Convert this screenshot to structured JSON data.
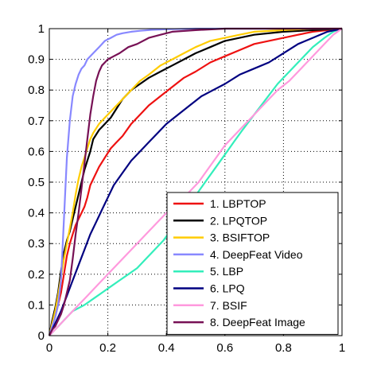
{
  "chart_data": {
    "type": "line",
    "title": "",
    "xlabel": "",
    "ylabel": "",
    "xlim": [
      0,
      1
    ],
    "ylim": [
      0,
      1
    ],
    "grid": true,
    "legend_placement": "bottom-right",
    "x_ticks": [
      {
        "value": 0,
        "label": "0"
      },
      {
        "value": 0.2,
        "label": "0.2"
      },
      {
        "value": 0.4,
        "label": "0.4"
      },
      {
        "value": 0.6,
        "label": "0.6"
      },
      {
        "value": 0.8,
        "label": "0.8"
      },
      {
        "value": 1,
        "label": "1"
      }
    ],
    "y_ticks": [
      {
        "value": 0,
        "label": "0"
      },
      {
        "value": 0.1,
        "label": "0.1"
      },
      {
        "value": 0.2,
        "label": "0.2"
      },
      {
        "value": 0.3,
        "label": "0.3"
      },
      {
        "value": 0.4,
        "label": "0.4"
      },
      {
        "value": 0.5,
        "label": "0.5"
      },
      {
        "value": 0.6,
        "label": "0.6"
      },
      {
        "value": 0.7,
        "label": "0.7"
      },
      {
        "value": 0.8,
        "label": "0.8"
      },
      {
        "value": 0.9,
        "label": "0.9"
      },
      {
        "value": 1,
        "label": "1"
      }
    ],
    "series": [
      {
        "name": "1. LBPTOP",
        "color": "#ee1111",
        "x": [
          0,
          0.01,
          0.02,
          0.03,
          0.04,
          0.05,
          0.06,
          0.07,
          0.08,
          0.09,
          0.1,
          0.11,
          0.12,
          0.13,
          0.14,
          0.15,
          0.17,
          0.19,
          0.21,
          0.23,
          0.25,
          0.28,
          0.31,
          0.34,
          0.38,
          0.42,
          0.46,
          0.5,
          0.55,
          0.6,
          0.65,
          0.7,
          0.75,
          0.8,
          0.85,
          0.9,
          0.95,
          1
        ],
        "y": [
          0,
          0.03,
          0.06,
          0.1,
          0.14,
          0.2,
          0.26,
          0.3,
          0.33,
          0.36,
          0.38,
          0.4,
          0.42,
          0.45,
          0.49,
          0.51,
          0.55,
          0.58,
          0.61,
          0.63,
          0.65,
          0.69,
          0.72,
          0.75,
          0.78,
          0.81,
          0.84,
          0.86,
          0.89,
          0.91,
          0.93,
          0.95,
          0.96,
          0.97,
          0.98,
          0.99,
          0.995,
          1
        ]
      },
      {
        "name": "2. LPQTOP",
        "color": "#000000",
        "x": [
          0,
          0.01,
          0.02,
          0.03,
          0.04,
          0.05,
          0.06,
          0.07,
          0.08,
          0.09,
          0.1,
          0.11,
          0.12,
          0.13,
          0.14,
          0.15,
          0.17,
          0.19,
          0.21,
          0.23,
          0.25,
          0.28,
          0.31,
          0.34,
          0.38,
          0.42,
          0.46,
          0.5,
          0.55,
          0.6,
          0.65,
          0.7,
          0.8,
          0.9,
          1
        ],
        "y": [
          0,
          0.05,
          0.09,
          0.14,
          0.21,
          0.27,
          0.31,
          0.34,
          0.38,
          0.42,
          0.46,
          0.5,
          0.54,
          0.57,
          0.6,
          0.64,
          0.67,
          0.69,
          0.71,
          0.74,
          0.77,
          0.8,
          0.82,
          0.84,
          0.86,
          0.88,
          0.9,
          0.92,
          0.94,
          0.96,
          0.97,
          0.98,
          0.99,
          0.995,
          1
        ]
      },
      {
        "name": "3. BSIFTOP",
        "color": "#ffcc00",
        "x": [
          0,
          0.01,
          0.02,
          0.03,
          0.04,
          0.05,
          0.06,
          0.07,
          0.08,
          0.09,
          0.1,
          0.11,
          0.12,
          0.13,
          0.14,
          0.15,
          0.17,
          0.19,
          0.21,
          0.23,
          0.25,
          0.28,
          0.31,
          0.34,
          0.38,
          0.42,
          0.46,
          0.5,
          0.55,
          0.6,
          0.65,
          0.7,
          0.8,
          0.9,
          1
        ],
        "y": [
          0,
          0.04,
          0.08,
          0.13,
          0.19,
          0.25,
          0.3,
          0.35,
          0.4,
          0.46,
          0.51,
          0.55,
          0.58,
          0.61,
          0.64,
          0.66,
          0.69,
          0.71,
          0.73,
          0.75,
          0.77,
          0.8,
          0.83,
          0.85,
          0.88,
          0.9,
          0.92,
          0.94,
          0.96,
          0.97,
          0.98,
          0.99,
          0.995,
          1,
          1
        ]
      },
      {
        "name": "4. DeepFeat Video",
        "color": "#8888ff",
        "x": [
          0,
          0.01,
          0.02,
          0.03,
          0.04,
          0.05,
          0.06,
          0.07,
          0.08,
          0.09,
          0.1,
          0.11,
          0.12,
          0.13,
          0.14,
          0.15,
          0.17,
          0.19,
          0.21,
          0.23,
          0.25,
          0.28,
          0.31,
          0.35,
          0.4,
          0.5,
          0.6,
          0.8,
          1
        ],
        "y": [
          0,
          0.03,
          0.06,
          0.1,
          0.18,
          0.38,
          0.58,
          0.7,
          0.78,
          0.82,
          0.85,
          0.87,
          0.88,
          0.9,
          0.91,
          0.92,
          0.94,
          0.96,
          0.97,
          0.98,
          0.985,
          0.99,
          0.993,
          0.996,
          0.998,
          1,
          1,
          1,
          1
        ]
      },
      {
        "name": "5. LBP",
        "color": "#33eebb",
        "x": [
          0,
          0.02,
          0.04,
          0.06,
          0.08,
          0.1,
          0.12,
          0.15,
          0.18,
          0.21,
          0.24,
          0.27,
          0.3,
          0.33,
          0.36,
          0.39,
          0.42,
          0.45,
          0.48,
          0.51,
          0.54,
          0.57,
          0.6,
          0.63,
          0.66,
          0.7,
          0.74,
          0.78,
          0.82,
          0.86,
          0.9,
          0.94,
          0.97,
          1
        ],
        "y": [
          0,
          0.02,
          0.04,
          0.06,
          0.08,
          0.09,
          0.1,
          0.12,
          0.14,
          0.16,
          0.18,
          0.2,
          0.22,
          0.25,
          0.28,
          0.31,
          0.35,
          0.39,
          0.43,
          0.47,
          0.51,
          0.55,
          0.59,
          0.63,
          0.67,
          0.72,
          0.77,
          0.82,
          0.86,
          0.9,
          0.94,
          0.97,
          0.99,
          1
        ]
      },
      {
        "name": "6. LPQ",
        "color": "#000080",
        "x": [
          0,
          0.02,
          0.04,
          0.06,
          0.08,
          0.1,
          0.12,
          0.14,
          0.16,
          0.18,
          0.2,
          0.22,
          0.25,
          0.28,
          0.31,
          0.34,
          0.37,
          0.4,
          0.44,
          0.48,
          0.52,
          0.56,
          0.6,
          0.65,
          0.7,
          0.75,
          0.8,
          0.85,
          0.9,
          0.95,
          1
        ],
        "y": [
          0,
          0.04,
          0.08,
          0.13,
          0.18,
          0.23,
          0.28,
          0.33,
          0.37,
          0.41,
          0.45,
          0.49,
          0.53,
          0.57,
          0.6,
          0.63,
          0.66,
          0.69,
          0.72,
          0.75,
          0.78,
          0.8,
          0.82,
          0.85,
          0.87,
          0.89,
          0.92,
          0.95,
          0.97,
          0.99,
          1
        ]
      },
      {
        "name": "7. BSIF",
        "color": "#ff99dd",
        "x": [
          0,
          0.02,
          0.04,
          0.06,
          0.08,
          0.1,
          0.12,
          0.15,
          0.18,
          0.21,
          0.24,
          0.27,
          0.3,
          0.33,
          0.36,
          0.39,
          0.42,
          0.45,
          0.48,
          0.51,
          0.54,
          0.57,
          0.6,
          0.63,
          0.66,
          0.7,
          0.74,
          0.78,
          0.82,
          0.86,
          0.9,
          0.94,
          0.97,
          1
        ],
        "y": [
          0,
          0.02,
          0.04,
          0.06,
          0.08,
          0.1,
          0.12,
          0.15,
          0.18,
          0.21,
          0.24,
          0.27,
          0.3,
          0.33,
          0.36,
          0.39,
          0.42,
          0.44,
          0.47,
          0.5,
          0.54,
          0.58,
          0.62,
          0.65,
          0.68,
          0.72,
          0.76,
          0.8,
          0.83,
          0.87,
          0.91,
          0.95,
          0.98,
          1
        ]
      },
      {
        "name": "8. DeepFeat Image",
        "color": "#771155",
        "x": [
          0,
          0.01,
          0.02,
          0.03,
          0.04,
          0.05,
          0.06,
          0.07,
          0.08,
          0.09,
          0.1,
          0.11,
          0.12,
          0.13,
          0.14,
          0.15,
          0.16,
          0.17,
          0.18,
          0.19,
          0.2,
          0.22,
          0.24,
          0.27,
          0.3,
          0.34,
          0.38,
          0.42,
          0.5,
          0.6,
          0.8,
          1
        ],
        "y": [
          0,
          0.02,
          0.03,
          0.05,
          0.07,
          0.1,
          0.14,
          0.18,
          0.25,
          0.33,
          0.4,
          0.48,
          0.56,
          0.64,
          0.72,
          0.78,
          0.83,
          0.86,
          0.88,
          0.89,
          0.9,
          0.91,
          0.92,
          0.94,
          0.95,
          0.97,
          0.98,
          0.99,
          0.995,
          1,
          1,
          1
        ]
      }
    ]
  }
}
